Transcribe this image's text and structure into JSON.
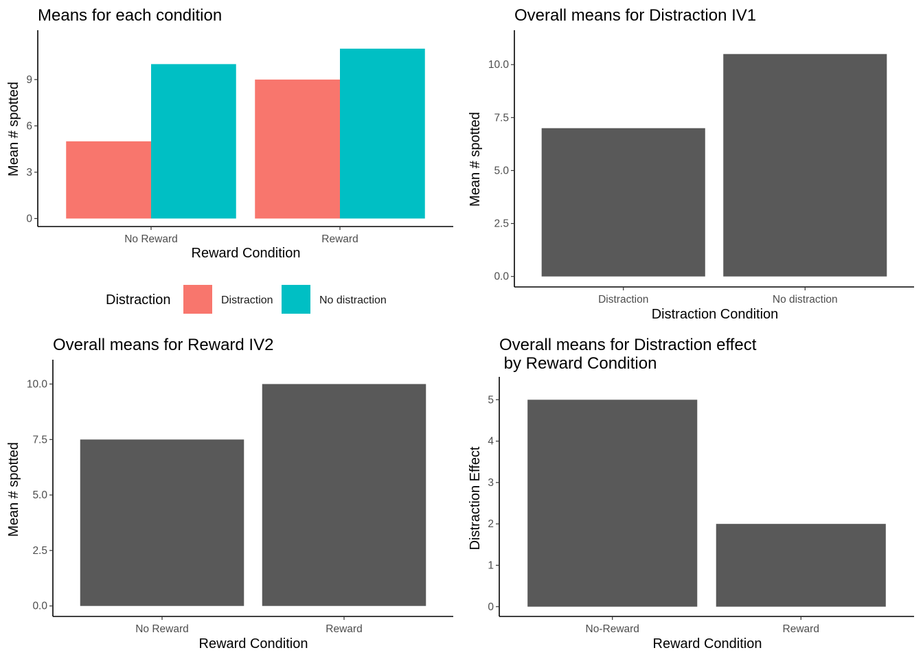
{
  "chart_data": [
    {
      "type": "bar",
      "title": "Means for each condition",
      "xlabel": "Reward Condition",
      "ylabel": "Mean # spotted",
      "categories": [
        "No Reward",
        "Reward"
      ],
      "series": [
        {
          "name": "Distraction",
          "color": "#F8766D",
          "values": [
            5,
            9
          ]
        },
        {
          "name": "No distraction",
          "color": "#00BFC4",
          "values": [
            10,
            11
          ]
        }
      ],
      "ylim": [
        0,
        11.5
      ],
      "yticks": [
        0,
        3,
        6,
        9
      ],
      "ytick_labels": [
        "0",
        "3",
        "6",
        "9"
      ],
      "legend": {
        "title": "Distraction",
        "position": "bottom"
      },
      "grid": false
    },
    {
      "type": "bar",
      "title": "Overall means for Distraction IV1",
      "xlabel": "Distraction Condition",
      "ylabel": "Mean # spotted",
      "categories": [
        "Distraction",
        "No distraction"
      ],
      "values": [
        7,
        10.5
      ],
      "color": "#595959",
      "ylim": [
        0,
        11
      ],
      "yticks": [
        0,
        2.5,
        5,
        7.5,
        10
      ],
      "ytick_labels": [
        "0.0",
        "2.5",
        "5.0",
        "7.5",
        "10.0"
      ],
      "grid": false
    },
    {
      "type": "bar",
      "title": "Overall means for Reward IV2",
      "xlabel": "Reward Condition",
      "ylabel": "Mean # spotted",
      "categories": [
        "No Reward",
        "Reward"
      ],
      "values": [
        7.5,
        10
      ],
      "color": "#595959",
      "ylim": [
        0,
        10.5
      ],
      "yticks": [
        0,
        2.5,
        5,
        7.5,
        10
      ],
      "ytick_labels": [
        "0.0",
        "2.5",
        "5.0",
        "7.5",
        "10.0"
      ],
      "grid": false
    },
    {
      "type": "bar",
      "title": "Overall means for Distraction effect\n by Reward Condition",
      "xlabel": "Reward Condition",
      "ylabel": "Distraction Effect",
      "categories": [
        "No-Reward",
        "Reward"
      ],
      "values": [
        5,
        2
      ],
      "color": "#595959",
      "ylim": [
        0,
        5.25
      ],
      "yticks": [
        0,
        1,
        2,
        3,
        4,
        5
      ],
      "ytick_labels": [
        "0",
        "1",
        "2",
        "3",
        "4",
        "5"
      ],
      "grid": false
    }
  ]
}
